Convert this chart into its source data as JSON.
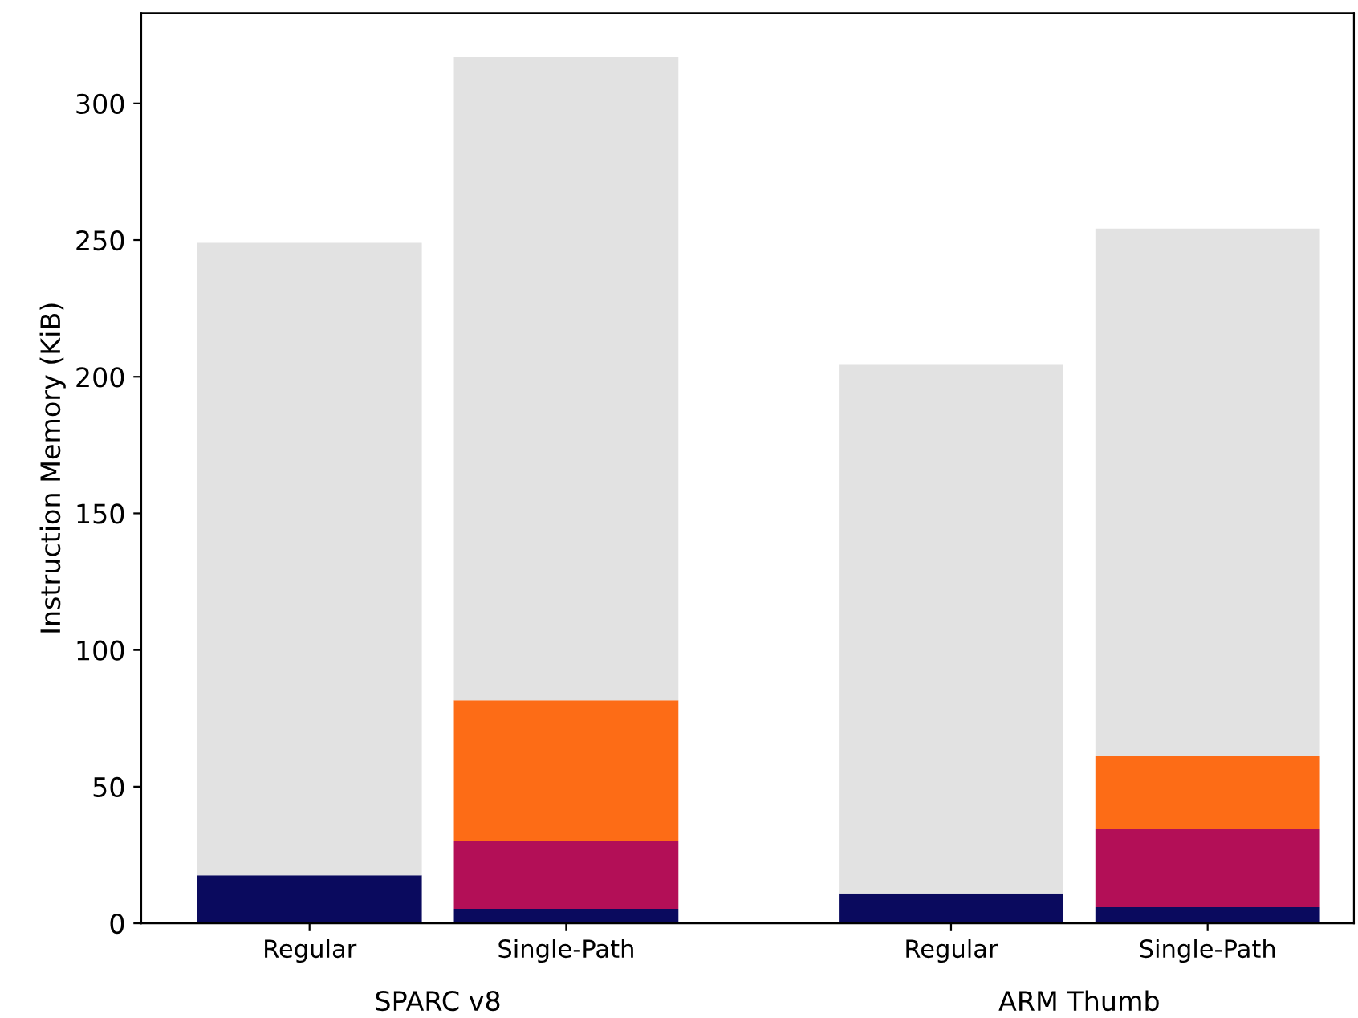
{
  "chart_data": {
    "type": "bar",
    "stacked": true,
    "ylabel": "Instruction Memory (KiB)",
    "categories": [
      "Regular",
      "Single-Path",
      "Regular",
      "Single-Path"
    ],
    "annotations": [
      "SPARC v8",
      "ARM Thumb"
    ],
    "series": [
      {
        "color": "#0a0a5e",
        "values": [
          17.6,
          5.3,
          11,
          5.9
        ]
      },
      {
        "color": "#b30f57",
        "values": [
          null,
          24.7,
          null,
          28.7
        ]
      },
      {
        "color": "#fd6c16",
        "values": [
          null,
          51.6,
          null,
          26.5
        ]
      },
      {
        "color": "#e2e2e2",
        "values": [
          231.4,
          235.4,
          193.3,
          193.1
        ]
      }
    ],
    "ylim": [
      0,
      333
    ],
    "yticks": [
      0,
      50,
      100,
      150,
      200,
      250,
      300
    ],
    "grid": false,
    "legend": false
  }
}
